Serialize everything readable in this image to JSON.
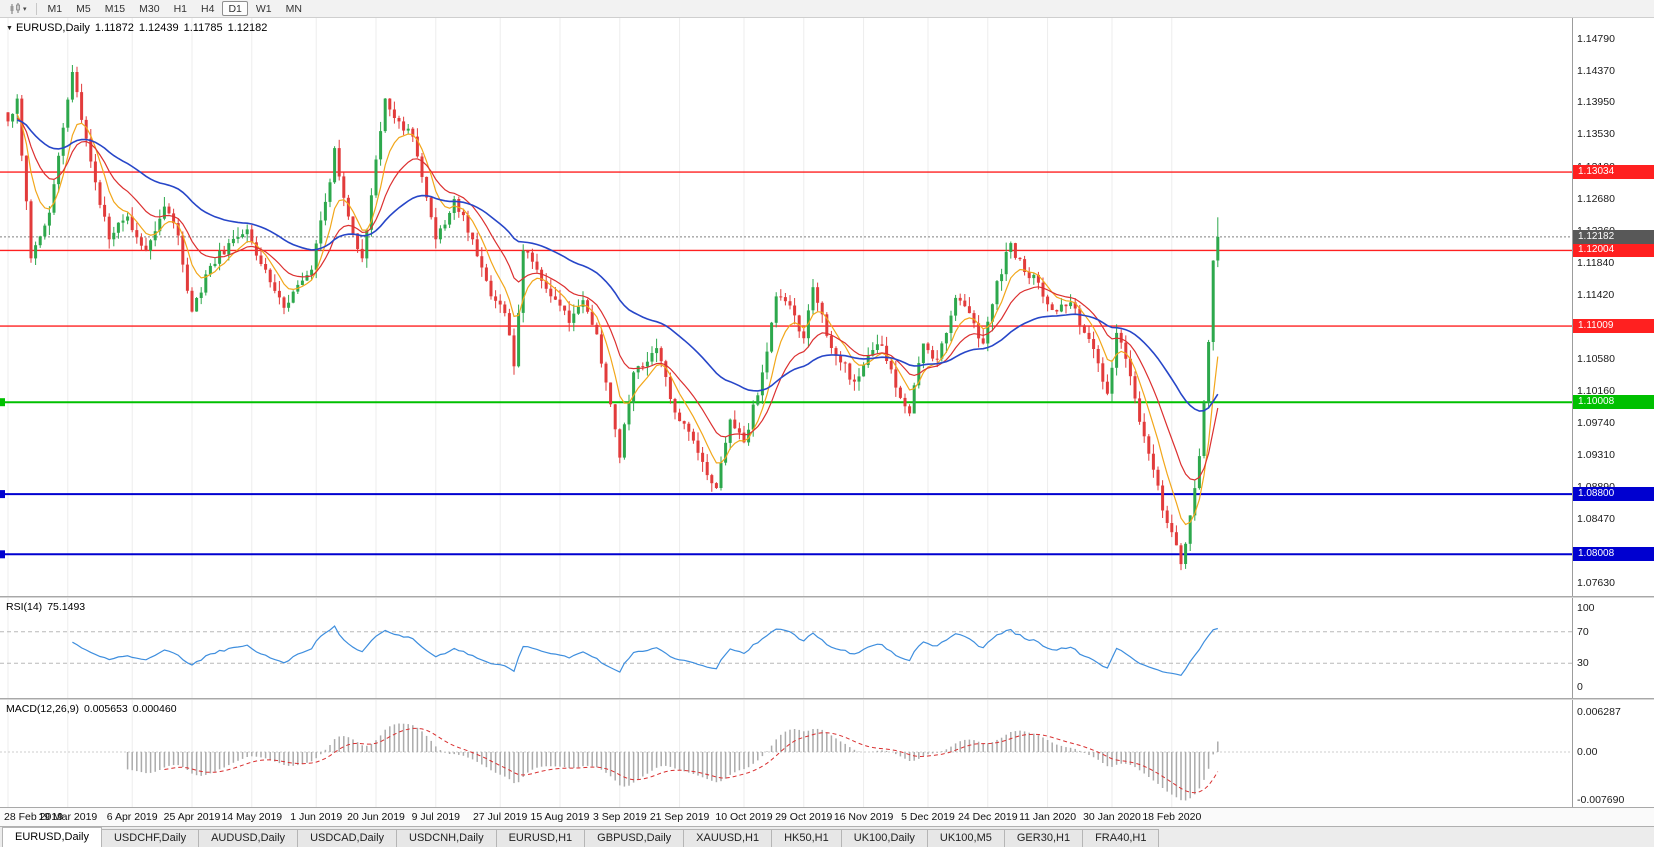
{
  "toolbar": {
    "timeframes": [
      "M1",
      "M5",
      "M15",
      "M30",
      "H1",
      "H4",
      "D1",
      "W1",
      "MN"
    ],
    "active_timeframe": "D1"
  },
  "header": {
    "symbol": "EURUSD,Daily",
    "open": "1.11872",
    "high": "1.12439",
    "low": "1.11785",
    "close": "1.12182"
  },
  "indicators": {
    "rsi": {
      "label": "RSI(14)",
      "value": "75.1493",
      "guide_levels": [
        70,
        30
      ],
      "axis_labels": [
        "100",
        "70",
        "30",
        "0"
      ]
    },
    "macd": {
      "label": "MACD(12,26,9)",
      "value_main": "0.005653",
      "value_signal": "0.000460",
      "axis_labels": [
        "0.006287",
        "0.00",
        "-0.007690"
      ]
    }
  },
  "chart_data": {
    "type": "candlestick",
    "symbol": "EURUSD",
    "timeframe": "Daily",
    "bars": 264,
    "y_range": [
      1.0746,
      1.1506
    ],
    "y_axis": [
      "1.14790",
      "1.14370",
      "1.13950",
      "1.13530",
      "1.13100",
      "1.12680",
      "1.12260",
      "1.11840",
      "1.11420",
      "1.11000",
      "1.10580",
      "1.10160",
      "1.09740",
      "1.09310",
      "1.08890",
      "1.08470",
      "1.08050",
      "1.07630"
    ],
    "x_axis": [
      "28 Feb 2019",
      "19 Mar 2019",
      "6 Apr 2019",
      "25 Apr 2019",
      "14 May 2019",
      "1 Jun 2019",
      "20 Jun 2019",
      "9 Jul 2019",
      "27 Jul 2019",
      "15 Aug 2019",
      "3 Sep 2019",
      "21 Sep 2019",
      "10 Oct 2019",
      "29 Oct 2019",
      "16 Nov 2019",
      "5 Dec 2019",
      "24 Dec 2019",
      "11 Jan 2020",
      "30 Jan 2020",
      "18 Feb 2020"
    ],
    "price_path": [
      [
        0,
        1.137
      ],
      [
        2,
        1.14
      ],
      [
        5,
        1.119
      ],
      [
        9,
        1.125
      ],
      [
        14,
        1.1435
      ],
      [
        19,
        1.129
      ],
      [
        22,
        1.1215
      ],
      [
        26,
        1.1245
      ],
      [
        30,
        1.12
      ],
      [
        34,
        1.1258
      ],
      [
        37,
        1.122
      ],
      [
        40,
        1.112
      ],
      [
        44,
        1.118
      ],
      [
        48,
        1.121
      ],
      [
        52,
        1.1228
      ],
      [
        56,
        1.1175
      ],
      [
        60,
        1.1125
      ],
      [
        63,
        1.1155
      ],
      [
        66,
        1.1175
      ],
      [
        70,
        1.129
      ],
      [
        71,
        1.1335
      ],
      [
        74,
        1.1245
      ],
      [
        77,
        1.119
      ],
      [
        80,
        1.132
      ],
      [
        82,
        1.14
      ],
      [
        85,
        1.137
      ],
      [
        88,
        1.135
      ],
      [
        91,
        1.127
      ],
      [
        93,
        1.1215
      ],
      [
        97,
        1.1268
      ],
      [
        101,
        1.1215
      ],
      [
        105,
        1.114
      ],
      [
        108,
        1.1118
      ],
      [
        110,
        1.1048
      ],
      [
        112,
        1.12
      ],
      [
        115,
        1.1175
      ],
      [
        118,
        1.114
      ],
      [
        122,
        1.1105
      ],
      [
        125,
        1.1135
      ],
      [
        128,
        1.109
      ],
      [
        131,
        1.0998
      ],
      [
        133,
        1.0928
      ],
      [
        136,
        1.104
      ],
      [
        141,
        1.1072
      ],
      [
        144,
        1.1005
      ],
      [
        148,
        1.0962
      ],
      [
        152,
        1.0905
      ],
      [
        154,
        1.0888
      ],
      [
        157,
        1.0978
      ],
      [
        160,
        1.0948
      ],
      [
        164,
        1.104
      ],
      [
        167,
        1.114
      ],
      [
        170,
        1.1128
      ],
      [
        173,
        1.1085
      ],
      [
        175,
        1.1152
      ],
      [
        179,
        1.1072
      ],
      [
        184,
        1.1028
      ],
      [
        187,
        1.1062
      ],
      [
        190,
        1.1075
      ],
      [
        193,
        1.102
      ],
      [
        196,
        1.0986
      ],
      [
        199,
        1.1078
      ],
      [
        202,
        1.1058
      ],
      [
        206,
        1.1138
      ],
      [
        209,
        1.1118
      ],
      [
        212,
        1.1078
      ],
      [
        215,
        1.116
      ],
      [
        218,
        1.121
      ],
      [
        221,
        1.1172
      ],
      [
        224,
        1.1158
      ],
      [
        227,
        1.1122
      ],
      [
        231,
        1.1132
      ],
      [
        234,
        1.1092
      ],
      [
        237,
        1.1052
      ],
      [
        239,
        1.1012
      ],
      [
        241,
        1.1092
      ],
      [
        243,
        1.1058
      ],
      [
        246,
        1.0975
      ],
      [
        249,
        1.0912
      ],
      [
        252,
        1.0842
      ],
      [
        255,
        1.0788
      ],
      [
        257,
        1.0852
      ],
      [
        259,
        1.093
      ],
      [
        260,
        1.1
      ],
      [
        261,
        1.108
      ],
      [
        262,
        1.1187
      ],
      [
        263,
        1.12182
      ]
    ],
    "levels": [
      {
        "value": "1.13034",
        "color": "#ff2020"
      },
      {
        "value": "1.12004",
        "color": "#ff2020"
      },
      {
        "value": "1.11009",
        "color": "#ff2020"
      },
      {
        "value": "1.10008",
        "color": "#00c000"
      },
      {
        "value": "1.08800",
        "color": "#0000d0"
      },
      {
        "value": "1.08008",
        "color": "#0000d0"
      }
    ],
    "last_price": {
      "value": "1.12182",
      "line_color": "#808080",
      "box_color": "#585858"
    }
  },
  "bottom_tabs": {
    "active": "EURUSD,Daily",
    "items": [
      "EURUSD,Daily",
      "USDCHF,Daily",
      "AUDUSD,Daily",
      "USDCAD,Daily",
      "USDCNH,Daily",
      "EURUSD,H1",
      "GBPUSD,Daily",
      "XAUUSD,H1",
      "HK50,H1",
      "UK100,Daily",
      "UK100,M5",
      "GER30,H1",
      "FRA40,H1"
    ]
  },
  "colors": {
    "bull": "#2da84c",
    "bear": "#e23b3b",
    "ma_fast": "#f2a71b",
    "ma_mid": "#dc3030",
    "ma_slow": "#2746c8",
    "rsi_line": "#3e8ede",
    "macd_hist": "#ababab",
    "macd_signal": "#d93030",
    "grid": "#ededed",
    "axis_line": "#9c9c9c"
  }
}
